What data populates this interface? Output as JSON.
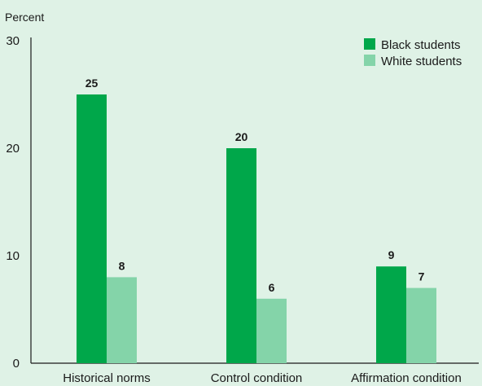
{
  "chart_data": {
    "type": "bar",
    "title": "",
    "ylabel": "Percent",
    "xlabel": "",
    "ylim": [
      0,
      30
    ],
    "yticks": [
      0,
      10,
      20,
      30
    ],
    "categories": [
      "Historical norms",
      "Control condition",
      "Affirmation condition"
    ],
    "series": [
      {
        "name": "Black students",
        "color": "#00a74a",
        "values": [
          25,
          20,
          9
        ]
      },
      {
        "name": "White students",
        "color": "#84d4a9",
        "values": [
          8,
          6,
          7
        ]
      }
    ],
    "legend": "top-right",
    "grid": false
  },
  "colors": {
    "background": "#dff2e6",
    "axis": "#1a1a1a"
  }
}
